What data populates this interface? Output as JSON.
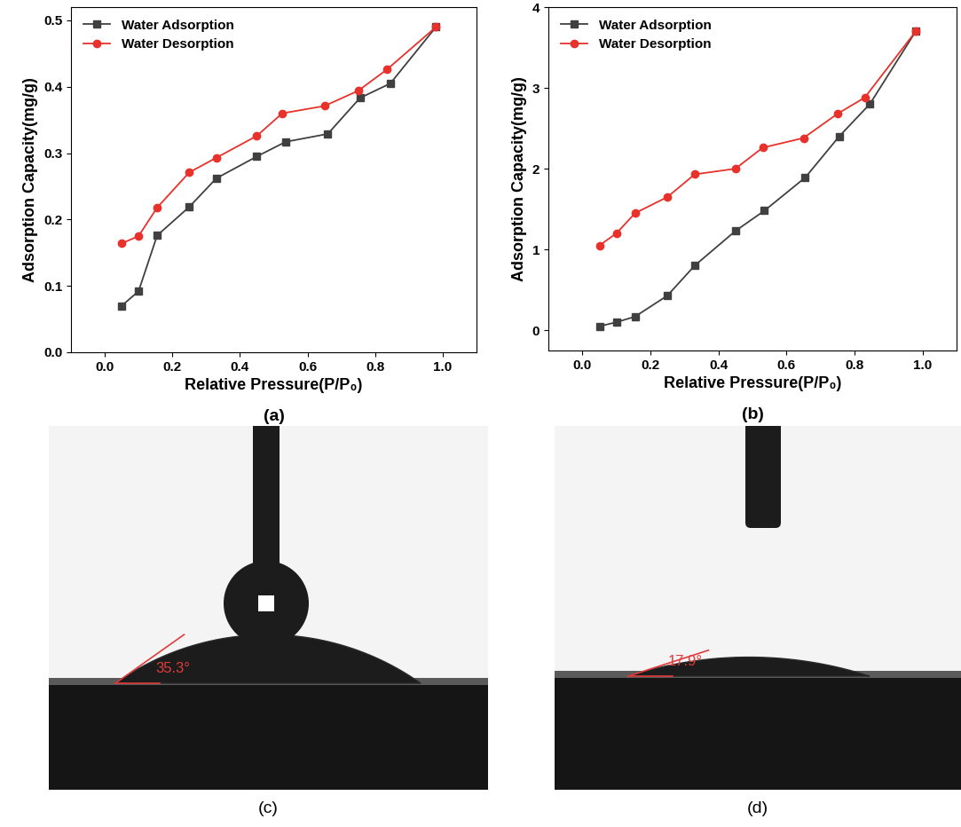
{
  "chart_data": [
    {
      "type": "line",
      "caption": "(a)",
      "x_label": "Relative Pressure(P/P₀)",
      "y_label": "Adsorption Capacity(mg/g)",
      "xlim": [
        -0.1,
        1.1
      ],
      "xticks": [
        0.0,
        0.2,
        0.4,
        0.6,
        0.8,
        1.0
      ],
      "ylim": [
        0.0,
        0.52
      ],
      "yticks": [
        0.0,
        0.1,
        0.2,
        0.3,
        0.4,
        0.5
      ],
      "legend": "upper left",
      "series": [
        {
          "name": "Water Adsorption",
          "color": "#404040",
          "marker": "square",
          "x": [
            0.05,
            0.1,
            0.155,
            0.25,
            0.33,
            0.45,
            0.535,
            0.66,
            0.755,
            0.845,
            0.98
          ],
          "values": [
            0.07,
            0.092,
            0.176,
            0.219,
            0.262,
            0.295,
            0.317,
            0.329,
            0.383,
            0.405,
            0.49
          ]
        },
        {
          "name": "Water Desorption",
          "color": "#e8312a",
          "marker": "circle",
          "x": [
            0.05,
            0.1,
            0.155,
            0.25,
            0.33,
            0.45,
            0.525,
            0.65,
            0.75,
            0.835,
            0.98
          ],
          "values": [
            0.164,
            0.175,
            0.218,
            0.271,
            0.293,
            0.326,
            0.36,
            0.371,
            0.394,
            0.426,
            0.49
          ]
        }
      ]
    },
    {
      "type": "line",
      "caption": "(b)",
      "x_label": "Relative Pressure(P/P₀)",
      "y_label": "Adsorption Capacity(mg/g)",
      "xlim": [
        -0.1,
        1.1
      ],
      "xticks": [
        0.0,
        0.2,
        0.4,
        0.6,
        0.8,
        1.0
      ],
      "ylim": [
        -0.25,
        4
      ],
      "yticks": [
        0,
        1,
        2,
        3,
        4
      ],
      "legend": "upper left",
      "series": [
        {
          "name": "Water Adsorption",
          "color": "#404040",
          "marker": "square",
          "x": [
            0.05,
            0.1,
            0.155,
            0.25,
            0.33,
            0.45,
            0.535,
            0.655,
            0.755,
            0.845,
            0.98
          ],
          "values": [
            0.05,
            0.1,
            0.17,
            0.43,
            0.8,
            1.23,
            1.48,
            1.89,
            2.4,
            2.8,
            3.7
          ]
        },
        {
          "name": "Water Desorption",
          "color": "#e8312a",
          "marker": "circle",
          "x": [
            0.05,
            0.1,
            0.155,
            0.25,
            0.33,
            0.45,
            0.53,
            0.65,
            0.75,
            0.83,
            0.98
          ],
          "values": [
            1.05,
            1.2,
            1.45,
            1.65,
            1.93,
            2.0,
            2.26,
            2.38,
            2.68,
            2.88,
            3.7
          ]
        }
      ]
    }
  ],
  "contact_angle_images": [
    {
      "caption": "(c)",
      "contact_angle": 35.3,
      "label": "35.3°"
    },
    {
      "caption": "(d)",
      "contact_angle": 17.9,
      "label": "17.9°"
    }
  ]
}
